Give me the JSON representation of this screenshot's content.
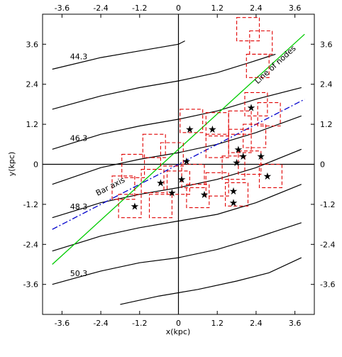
{
  "chart_data": {
    "type": "scatter",
    "xlabel": "x(kpc)",
    "ylabel": "y(kpc)",
    "xlim": [
      -4.2,
      4.2
    ],
    "ylim": [
      -4.5,
      4.5
    ],
    "ticks": [
      "-3.6",
      "-2.4",
      "-1.2",
      "0",
      "1.2",
      "2.4",
      "3.6"
    ],
    "tick_values": [
      -3.6,
      -2.4,
      -1.2,
      0,
      1.2,
      2.4,
      3.6
    ],
    "contours": [
      {
        "label": "44.3",
        "label_at": [
          -3.35,
          3.15
        ],
        "points": [
          [
            -3.9,
            2.85
          ],
          [
            -2.4,
            3.2
          ],
          [
            -1.2,
            3.4
          ],
          [
            0,
            3.6
          ],
          [
            0.2,
            3.7
          ]
        ]
      },
      {
        "label": "",
        "label_at": null,
        "points": [
          [
            -3.9,
            1.65
          ],
          [
            -2.4,
            2.05
          ],
          [
            -1.2,
            2.3
          ],
          [
            0,
            2.5
          ],
          [
            1.2,
            2.75
          ],
          [
            2.2,
            3.05
          ],
          [
            3.0,
            3.3
          ]
        ]
      },
      {
        "label": "46.3",
        "label_at": [
          -3.35,
          0.7
        ],
        "points": [
          [
            -3.9,
            0.45
          ],
          [
            -2.4,
            0.9
          ],
          [
            -1.2,
            1.15
          ],
          [
            0,
            1.35
          ],
          [
            1.2,
            1.6
          ],
          [
            2.4,
            1.95
          ],
          [
            3.8,
            2.3
          ]
        ]
      },
      {
        "label": "",
        "label_at": null,
        "points": [
          [
            -3.9,
            -0.6
          ],
          [
            -2.4,
            -0.1
          ],
          [
            -1.2,
            0.15
          ],
          [
            0,
            0.35
          ],
          [
            1.2,
            0.6
          ],
          [
            2.4,
            0.95
          ],
          [
            3.8,
            1.45
          ]
        ]
      },
      {
        "label": "48.3",
        "label_at": [
          -3.35,
          -1.35
        ],
        "points": [
          [
            -3.9,
            -1.6
          ],
          [
            -2.4,
            -1.15
          ],
          [
            -1.2,
            -0.9
          ],
          [
            0,
            -0.7
          ],
          [
            1.2,
            -0.45
          ],
          [
            2.4,
            -0.1
          ],
          [
            3.8,
            0.45
          ]
        ]
      },
      {
        "label": "",
        "label_at": null,
        "points": [
          [
            -3.9,
            -2.6
          ],
          [
            -2.4,
            -2.15
          ],
          [
            -1.2,
            -1.9
          ],
          [
            0,
            -1.7
          ],
          [
            1.2,
            -1.5
          ],
          [
            2.4,
            -1.15
          ],
          [
            3.8,
            -0.6
          ]
        ]
      },
      {
        "label": "50.3",
        "label_at": [
          -3.35,
          -3.35
        ],
        "points": [
          [
            -3.9,
            -3.6
          ],
          [
            -2.4,
            -3.2
          ],
          [
            -1.2,
            -2.95
          ],
          [
            0,
            -2.8
          ],
          [
            1.2,
            -2.55
          ],
          [
            2.4,
            -2.2
          ],
          [
            3.8,
            -1.75
          ]
        ]
      },
      {
        "label": "",
        "label_at": null,
        "points": [
          [
            -1.8,
            -4.2
          ],
          [
            -0.6,
            -3.95
          ],
          [
            0.6,
            -3.75
          ],
          [
            1.8,
            -3.5
          ],
          [
            2.8,
            -3.25
          ],
          [
            3.8,
            -2.8
          ]
        ]
      }
    ],
    "line_of_nodes": {
      "label": "Line of nodes",
      "color": "#00cc00",
      "points": [
        [
          -3.9,
          -3.0
        ],
        [
          3.9,
          3.9
        ]
      ]
    },
    "bar_axis": {
      "label": "Bar axis",
      "color": "#0000cc",
      "points": [
        [
          -3.9,
          -1.95
        ],
        [
          3.9,
          1.95
        ]
      ]
    },
    "star_marker": "★",
    "stars": [
      [
        -1.35,
        -1.25
      ],
      [
        -0.55,
        -0.55
      ],
      [
        -0.2,
        -0.85
      ],
      [
        0.1,
        -0.45
      ],
      [
        0.25,
        0.1
      ],
      [
        0.35,
        1.05
      ],
      [
        0.8,
        -0.9
      ],
      [
        1.05,
        1.05
      ],
      [
        1.7,
        -1.15
      ],
      [
        1.7,
        -0.8
      ],
      [
        1.8,
        0.05
      ],
      [
        1.85,
        0.45
      ],
      [
        2.0,
        0.25
      ],
      [
        2.25,
        1.7
      ],
      [
        2.55,
        0.25
      ],
      [
        2.75,
        -0.35
      ]
    ],
    "box_color": "#e00000",
    "boxes": [
      [
        -0.75,
        0.55
      ],
      [
        -0.2,
        0.3
      ],
      [
        -1.4,
        -0.05
      ],
      [
        -1.7,
        -0.7
      ],
      [
        -1.5,
        -1.25
      ],
      [
        -0.8,
        -0.5
      ],
      [
        -0.55,
        -1.25
      ],
      [
        0,
        -0.55
      ],
      [
        0.4,
        1.3
      ],
      [
        0.45,
        -0.35
      ],
      [
        0.6,
        -0.95
      ],
      [
        1.2,
        1.2
      ],
      [
        1.2,
        0.55
      ],
      [
        1.2,
        -0.6
      ],
      [
        1.9,
        1.25
      ],
      [
        1.9,
        0.7
      ],
      [
        1.7,
        -0.1
      ],
      [
        1.8,
        -0.9
      ],
      [
        2.4,
        1.8
      ],
      [
        2.35,
        0.85
      ],
      [
        2.2,
        0.05
      ],
      [
        2.8,
        1.5
      ],
      [
        2.85,
        -0.35
      ],
      [
        2.15,
        4.05
      ],
      [
        2.55,
        3.65
      ],
      [
        2.45,
        2.95
      ]
    ]
  }
}
